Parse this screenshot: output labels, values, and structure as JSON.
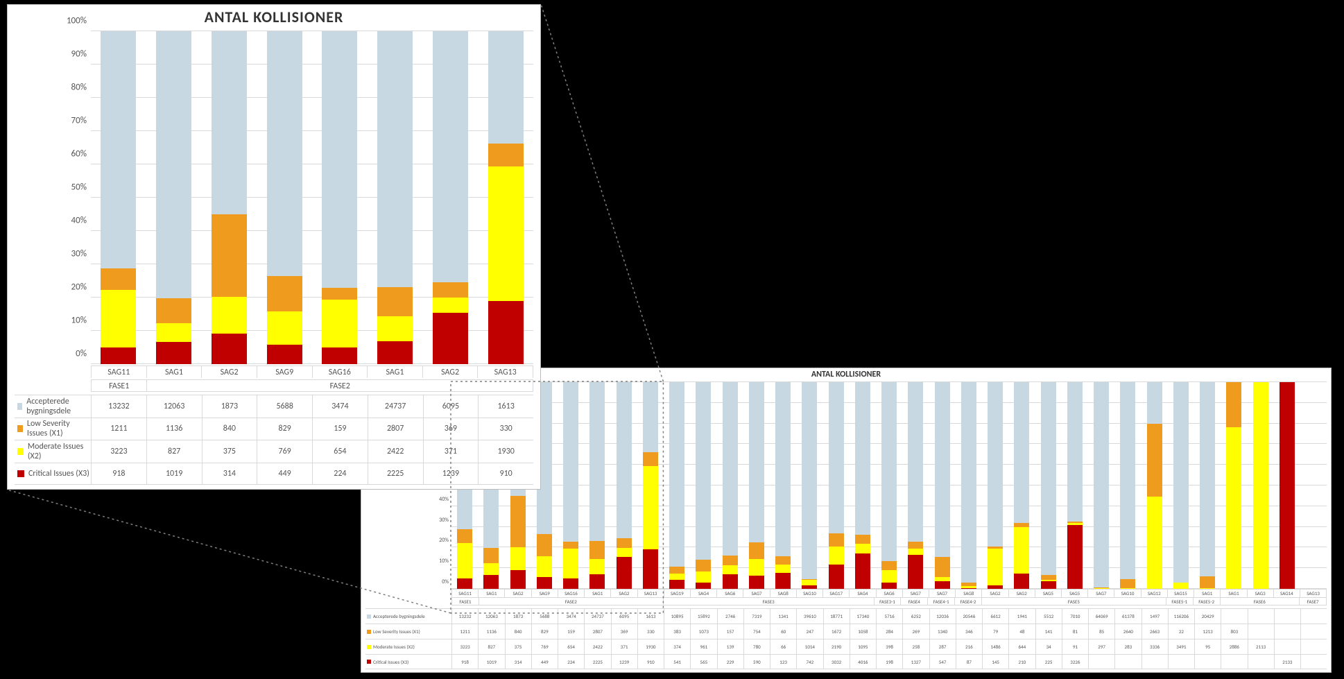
{
  "chart": {
    "title": "ANTAL KOLLISIONER",
    "type": "stacked-bar-100pct",
    "yticks_pct": [
      0,
      10,
      20,
      30,
      40,
      50,
      60,
      70,
      80,
      90,
      100
    ],
    "ytick_format_suffix": "%",
    "background_color": "#ffffff",
    "grid_color": "#d9d9d9",
    "series": [
      {
        "key": "accepted",
        "label": "Accepterede bygningsdele",
        "color": "#c7d8e2"
      },
      {
        "key": "low",
        "label": "Low Severity Issues (X1)",
        "color": "#ee9b1e"
      },
      {
        "key": "moderate",
        "label": "Moderate Issues (X2)",
        "color": "#ffff00"
      },
      {
        "key": "critical",
        "label": "Critical Issues (X3)",
        "color": "#c00000"
      }
    ],
    "phases": [
      {
        "label": "FASE1",
        "count": 1
      },
      {
        "label": "FASE2",
        "count": 7
      },
      {
        "label": "FASE3",
        "count": 8
      },
      {
        "label": "FASE3-1",
        "count": 1
      },
      {
        "label": "FASE4",
        "count": 1
      },
      {
        "label": "FASE4-1",
        "count": 1
      },
      {
        "label": "FASE4-2",
        "count": 1
      },
      {
        "label": "FASE5",
        "count": 7
      },
      {
        "label": "FASE5-1",
        "count": 1
      },
      {
        "label": "FASE5-2",
        "count": 1
      },
      {
        "label": "FASE6",
        "count": 3
      },
      {
        "label": "FASE7",
        "count": 1
      }
    ],
    "categories": [
      "SAG11",
      "SAG1",
      "SAG2",
      "SAG9",
      "SAG16",
      "SAG1",
      "SAG2",
      "SAG13",
      "SAG19",
      "SAG4",
      "SAG6",
      "SAG7",
      "SAG8",
      "SAG10",
      "SAG17",
      "SAG4",
      "SAG6",
      "SAG7",
      "SAG7",
      "SAG8",
      "SAG2",
      "SAG2",
      "SAG5",
      "SAG5",
      "SAG7",
      "SAG10",
      "SAG12",
      "SAG15",
      "SAG1",
      "SAG1",
      "SAG3",
      "SAG14",
      "SAG13"
    ],
    "values": {
      "accepted": [
        13232,
        12063,
        1873,
        5688,
        3474,
        24737,
        6095,
        1613,
        10895,
        15892,
        2746,
        7319,
        1341,
        39610,
        18771,
        17340,
        5716,
        6252,
        12036,
        20546,
        6612,
        1941,
        5512,
        7010,
        64069,
        61378,
        1497,
        116206,
        20429,
        null,
        null,
        null,
        null
      ],
      "low": [
        1211,
        1136,
        840,
        829,
        159,
        2807,
        369,
        330,
        383,
        1073,
        157,
        754,
        60,
        247,
        1672,
        1058,
        284,
        269,
        1340,
        346,
        79,
        48,
        141,
        81,
        85,
        2640,
        2663,
        22,
        1213,
        803,
        null,
        null,
        null
      ],
      "moderate": [
        3223,
        827,
        375,
        769,
        654,
        2422,
        371,
        1930,
        374,
        961,
        139,
        780,
        66,
        1014,
        2190,
        1095,
        398,
        258,
        287,
        216,
        1486,
        644,
        34,
        91,
        297,
        283,
        3336,
        3491,
        95,
        2886,
        2113,
        null,
        null
      ],
      "critical": [
        918,
        1019,
        314,
        449,
        224,
        2225,
        1239,
        910,
        541,
        565,
        229,
        590,
        123,
        742,
        3032,
        4016,
        198,
        1327,
        547,
        87,
        145,
        210,
        225,
        3226,
        null,
        null,
        null,
        null,
        null,
        null,
        null,
        2133,
        null
      ]
    },
    "detail_view_cols": 8,
    "zoom_rect_cols": 8
  },
  "callout": {
    "line_color": "#7f7f7f",
    "dash": "3 4"
  }
}
